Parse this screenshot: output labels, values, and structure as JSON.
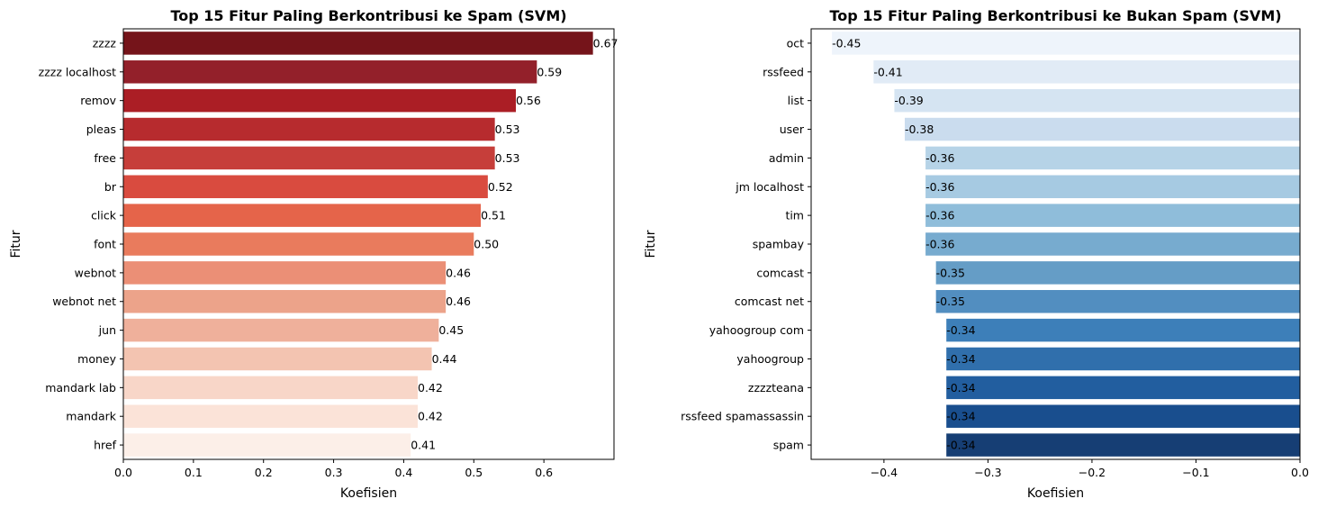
{
  "chart_data": [
    {
      "type": "bar",
      "orientation": "horizontal",
      "title": "Top 15 Fitur Paling Berkontribusi ke Spam (SVM)",
      "xlabel": "Koefisien",
      "ylabel": "Fitur",
      "categories": [
        "zzzz",
        "zzzz localhost",
        "remov",
        "pleas",
        "free",
        "br",
        "click",
        "font",
        "webnot",
        "webnot net",
        "jun",
        "money",
        "mandark lab",
        "mandark",
        "href"
      ],
      "values": [
        0.67,
        0.59,
        0.56,
        0.53,
        0.53,
        0.52,
        0.51,
        0.5,
        0.46,
        0.46,
        0.45,
        0.44,
        0.42,
        0.42,
        0.41
      ],
      "value_labels": [
        "0.67",
        "0.59",
        "0.56",
        "0.53",
        "0.53",
        "0.52",
        "0.51",
        "0.50",
        "0.46",
        "0.46",
        "0.45",
        "0.44",
        "0.42",
        "0.42",
        "0.41"
      ],
      "xlim": [
        0,
        0.7
      ],
      "xticks": [
        0,
        0.1,
        0.2,
        0.3,
        0.4,
        0.5,
        0.6
      ],
      "xtick_labels": [
        "0.0",
        "0.1",
        "0.2",
        "0.3",
        "0.4",
        "0.5",
        "0.6"
      ],
      "colors": [
        "#75141a",
        "#93202a",
        "#ab1e25",
        "#b72b2e",
        "#c63e3a",
        "#d94b3f",
        "#e5644a",
        "#e97b5d",
        "#eb8f76",
        "#eca38a",
        "#efb09b",
        "#f3c4b1",
        "#f8d6c8",
        "#fbe3d8",
        "#fcefe8"
      ],
      "grid": false
    },
    {
      "type": "bar",
      "orientation": "horizontal",
      "title": "Top 15 Fitur Paling Berkontribusi ke Bukan Spam (SVM)",
      "xlabel": "Koefisien",
      "ylabel": "Fitur",
      "categories": [
        "oct",
        "rssfeed",
        "list",
        "user",
        "admin",
        "jm localhost",
        "tim",
        "spambay",
        "comcast",
        "comcast net",
        "yahoogroup com",
        "yahoogroup",
        "zzzzteana",
        "rssfeed spamassassin",
        "spam"
      ],
      "values": [
        -0.45,
        -0.41,
        -0.39,
        -0.38,
        -0.36,
        -0.36,
        -0.36,
        -0.36,
        -0.35,
        -0.35,
        -0.34,
        -0.34,
        -0.34,
        -0.34,
        -0.34
      ],
      "value_labels": [
        "-0.45",
        "-0.41",
        "-0.39",
        "-0.38",
        "-0.36",
        "-0.36",
        "-0.36",
        "-0.36",
        "-0.35",
        "-0.35",
        "-0.34",
        "-0.34",
        "-0.34",
        "-0.34",
        "-0.34"
      ],
      "xlim": [
        -0.47,
        0
      ],
      "xticks": [
        -0.4,
        -0.3,
        -0.2,
        -0.1,
        0.0
      ],
      "xtick_labels": [
        "−0.4",
        "−0.3",
        "−0.2",
        "−0.1",
        "0.0"
      ],
      "colors": [
        "#eef4fb",
        "#e1ebf6",
        "#d5e4f2",
        "#cadcee",
        "#b6d3e7",
        "#a6cae2",
        "#8fbdda",
        "#77abcf",
        "#659dc6",
        "#528ec0",
        "#3d7fb9",
        "#306fac",
        "#225e9f",
        "#194e8e",
        "#163e74"
      ],
      "grid": false
    }
  ]
}
